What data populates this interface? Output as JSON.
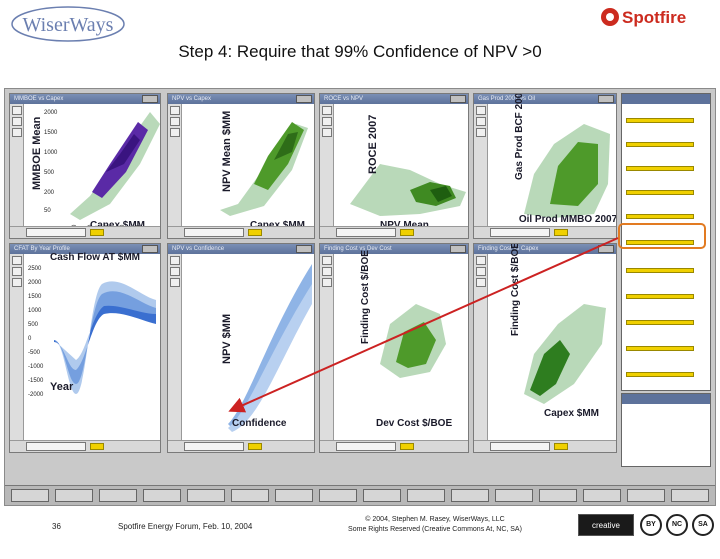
{
  "slide": {
    "title": "Step 4: Require that 99% Confidence of NPV >0",
    "logo_left": "WiserWays",
    "logo_right": "Spotfire",
    "page_number": "36",
    "event": "Spotfire Energy Forum, Feb. 10, 2004",
    "copyright_line1": "© 2004, Stephen M. Rasey, WiserWays, LLC",
    "copyright_line2": "Some Rights Reserved (Creative Commons At, NC, SA)",
    "cc_logo": "creative commons",
    "cc_icons": [
      "BY",
      "NC",
      "SA"
    ]
  },
  "plots": {
    "p1": {
      "ylabel": "MMBOE Mean",
      "xlabel": "Capex $MM"
    },
    "p2": {
      "ylabel": "NPV Mean $MM",
      "xlabel": "Capex $MM"
    },
    "p3": {
      "ylabel": "ROCE 2007",
      "xlabel": "NPV Mean"
    },
    "p4": {
      "ylabel": "Gas Prod BCF 2007",
      "xlabel": "Oil Prod MMBO 2007"
    },
    "p5": {
      "ylabel": "Cash Flow AT $MM",
      "xlabel": "Year"
    },
    "p6": {
      "ylabel": "NPV $MM",
      "xlabel": "Confidence"
    },
    "p7": {
      "ylabel": "Finding Cost $/BOE",
      "xlabel": "Dev Cost $/BOE"
    },
    "p8": {
      "ylabel": "Finding Cost $/BOE",
      "xlabel": "Capex $MM"
    }
  },
  "colors": {
    "window_bg": "#c9c9c9",
    "panel_title": "#5d729b",
    "scatter_light": "#b9d9b9",
    "scatter_dark": "#2e7d1f",
    "scatter_purple": "#5a2aa6",
    "fan_blue": "#8fb4e6",
    "arrow_red": "#cc2222",
    "highlight_orange": "#e27b22",
    "slider_yellow": "#f0d000"
  },
  "icons": [
    "minimize-icon",
    "close-icon",
    "zoom-icon",
    "cc-by-icon",
    "cc-nc-icon",
    "cc-sa-icon"
  ]
}
